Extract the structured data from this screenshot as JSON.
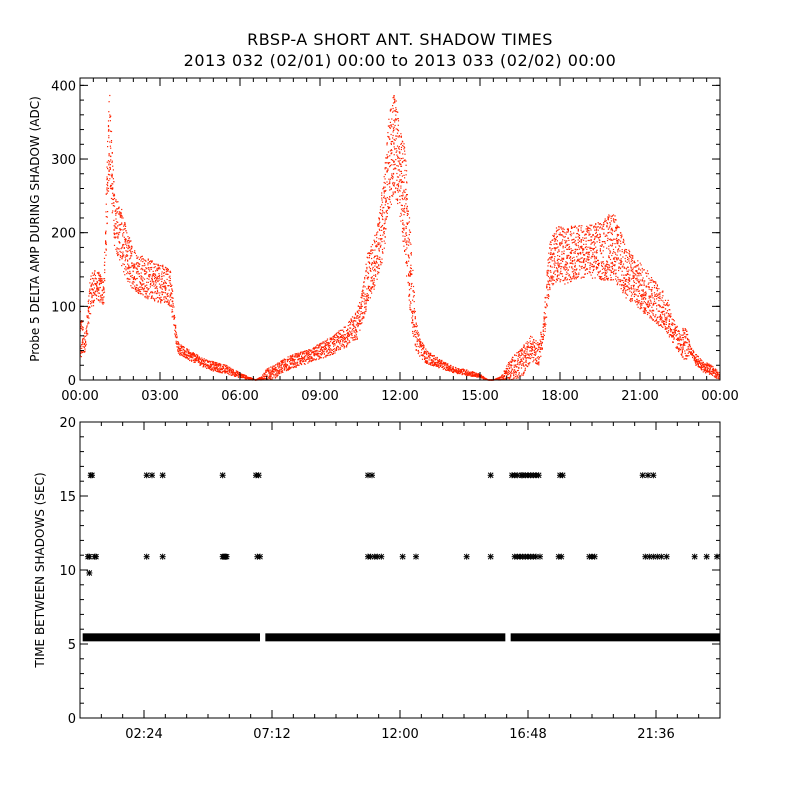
{
  "title": "RBSP-A SHORT ANT. SHADOW TIMES",
  "subtitle": "2013 032 (02/01) 00:00 to 2013 033 (02/02) 00:00",
  "colors": {
    "points_top": "#ff2200",
    "points_bottom": "#000000",
    "axis": "#000000"
  },
  "chart_data": [
    {
      "type": "scatter",
      "ylabel": "Probe 5 DELTA AMP DURING SHADOW (ADC)",
      "xlabel": "",
      "x_unit": "hours since 2013-02-01 00:00",
      "xlim": [
        0,
        24
      ],
      "ylim": [
        0,
        410
      ],
      "xticks": [
        0,
        3,
        6,
        9,
        12,
        15,
        18,
        21,
        24
      ],
      "xtick_labels": [
        "00:00",
        "03:00",
        "06:00",
        "09:00",
        "12:00",
        "15:00",
        "18:00",
        "21:00",
        "00:00"
      ],
      "yticks": [
        0,
        100,
        200,
        300,
        400
      ],
      "ytick_labels": [
        "0",
        "100",
        "200",
        "300",
        "400"
      ],
      "marker": "dot",
      "envelope": {
        "x": [
          0.0,
          0.1,
          0.2,
          0.4,
          0.6,
          0.9,
          1.1,
          1.3,
          1.5,
          1.8,
          2.1,
          2.5,
          3.0,
          3.4,
          3.6,
          3.7,
          3.9,
          4.2,
          4.6,
          5.0,
          5.5,
          6.0,
          6.4,
          6.6,
          6.8,
          7.0,
          7.3,
          7.6,
          8.0,
          8.5,
          9.0,
          9.5,
          10.0,
          10.4,
          10.6,
          10.8,
          11.0,
          11.2,
          11.4,
          11.6,
          11.8,
          12.0,
          12.2,
          12.4,
          12.6,
          12.8,
          13.0,
          13.5,
          14.0,
          14.5,
          15.0,
          15.3,
          15.5,
          15.8,
          16.0,
          16.3,
          16.6,
          16.9,
          17.2,
          17.4,
          17.6,
          17.9,
          18.2,
          18.5,
          19.0,
          19.5,
          20.0,
          20.5,
          21.0,
          21.5,
          22.0,
          22.3,
          22.5,
          22.7,
          22.9,
          23.1,
          23.4,
          23.7,
          24.0
        ],
        "lo": [
          20,
          30,
          40,
          90,
          110,
          100,
          280,
          180,
          160,
          130,
          120,
          110,
          105,
          100,
          50,
          35,
          30,
          25,
          18,
          12,
          8,
          3,
          0,
          0,
          0,
          0,
          2,
          10,
          16,
          22,
          28,
          35,
          45,
          55,
          80,
          100,
          120,
          140,
          170,
          230,
          250,
          220,
          160,
          80,
          40,
          28,
          22,
          16,
          10,
          6,
          3,
          0,
          0,
          0,
          0,
          0,
          5,
          25,
          20,
          50,
          120,
          135,
          130,
          135,
          140,
          135,
          135,
          110,
          95,
          80,
          65,
          45,
          35,
          25,
          35,
          20,
          10,
          5,
          0
        ],
        "hi": [
          95,
          80,
          60,
          145,
          150,
          140,
          410,
          250,
          240,
          200,
          175,
          165,
          160,
          150,
          70,
          50,
          45,
          38,
          30,
          25,
          20,
          10,
          3,
          0,
          5,
          15,
          20,
          28,
          35,
          40,
          50,
          60,
          75,
          95,
          125,
          175,
          190,
          220,
          280,
          360,
          395,
          340,
          320,
          200,
          80,
          55,
          40,
          28,
          18,
          14,
          8,
          0,
          0,
          5,
          20,
          35,
          45,
          60,
          50,
          90,
          190,
          210,
          205,
          210,
          210,
          215,
          230,
          180,
          160,
          140,
          115,
          80,
          65,
          75,
          45,
          35,
          25,
          20,
          10
        ]
      }
    },
    {
      "type": "scatter",
      "ylabel": "TIME BETWEEN SHADOWS (SEC)",
      "xlabel": "",
      "x_unit": "hours since 2013-02-01 00:00",
      "xlim": [
        0,
        24
      ],
      "ylim": [
        0,
        20
      ],
      "xticks": [
        2.4,
        7.2,
        12.0,
        16.8,
        21.6
      ],
      "xtick_labels": [
        "02:24",
        "07:12",
        "12:00",
        "16:48",
        "21:36"
      ],
      "yticks": [
        0,
        5,
        10,
        15,
        20
      ],
      "ytick_labels": [
        "0",
        "5",
        "10",
        "15",
        "20"
      ],
      "marker": "asterisk",
      "baseline": {
        "y": 5.45,
        "ranges": [
          [
            0.1,
            6.75
          ],
          [
            6.95,
            15.95
          ],
          [
            16.15,
            24.0
          ]
        ]
      },
      "points": {
        "x": [
          0.35,
          0.4,
          0.3,
          0.35,
          0.45,
          0.55,
          0.6,
          2.5,
          2.5,
          2.7,
          3.1,
          3.1,
          5.35,
          5.4,
          5.45,
          5.35,
          5.4,
          5.45,
          5.5,
          6.6,
          6.75,
          6.65,
          6.7,
          10.8,
          10.95,
          10.8,
          10.9,
          11.05,
          11.15,
          11.3,
          12.1,
          12.6,
          14.5,
          15.4,
          15.4,
          16.2,
          16.3,
          16.4,
          16.55,
          16.6,
          16.7,
          16.8,
          16.9,
          17.0,
          17.1,
          17.2,
          16.3,
          16.4,
          16.5,
          16.6,
          16.7,
          16.8,
          16.9,
          17.0,
          17.1,
          17.25,
          18.0,
          18.1,
          17.95,
          18.05,
          19.1,
          19.2,
          19.3,
          21.1,
          21.3,
          21.5,
          21.2,
          21.35,
          21.5,
          21.65,
          21.8,
          22.0,
          23.05,
          23.5,
          24.1
        ],
        "y": [
          9.8,
          16.4,
          10.9,
          10.9,
          16.4,
          10.9,
          10.9,
          16.4,
          10.9,
          16.4,
          10.9,
          16.4,
          16.4,
          10.9,
          10.9,
          10.9,
          10.9,
          10.9,
          10.9,
          16.4,
          10.9,
          10.9,
          16.4,
          16.4,
          16.4,
          10.9,
          10.9,
          10.9,
          10.9,
          10.9,
          10.9,
          10.9,
          10.9,
          16.4,
          10.9,
          16.4,
          16.4,
          16.4,
          16.4,
          16.4,
          16.4,
          16.4,
          16.4,
          16.4,
          16.4,
          16.4,
          10.9,
          10.9,
          10.9,
          10.9,
          10.9,
          10.9,
          10.9,
          10.9,
          10.9,
          10.9,
          16.4,
          16.4,
          10.9,
          10.9,
          10.9,
          10.9,
          10.9,
          16.4,
          16.4,
          16.4,
          10.9,
          10.9,
          10.9,
          10.9,
          10.9,
          10.9,
          10.9,
          10.9,
          10.9
        ]
      }
    }
  ]
}
